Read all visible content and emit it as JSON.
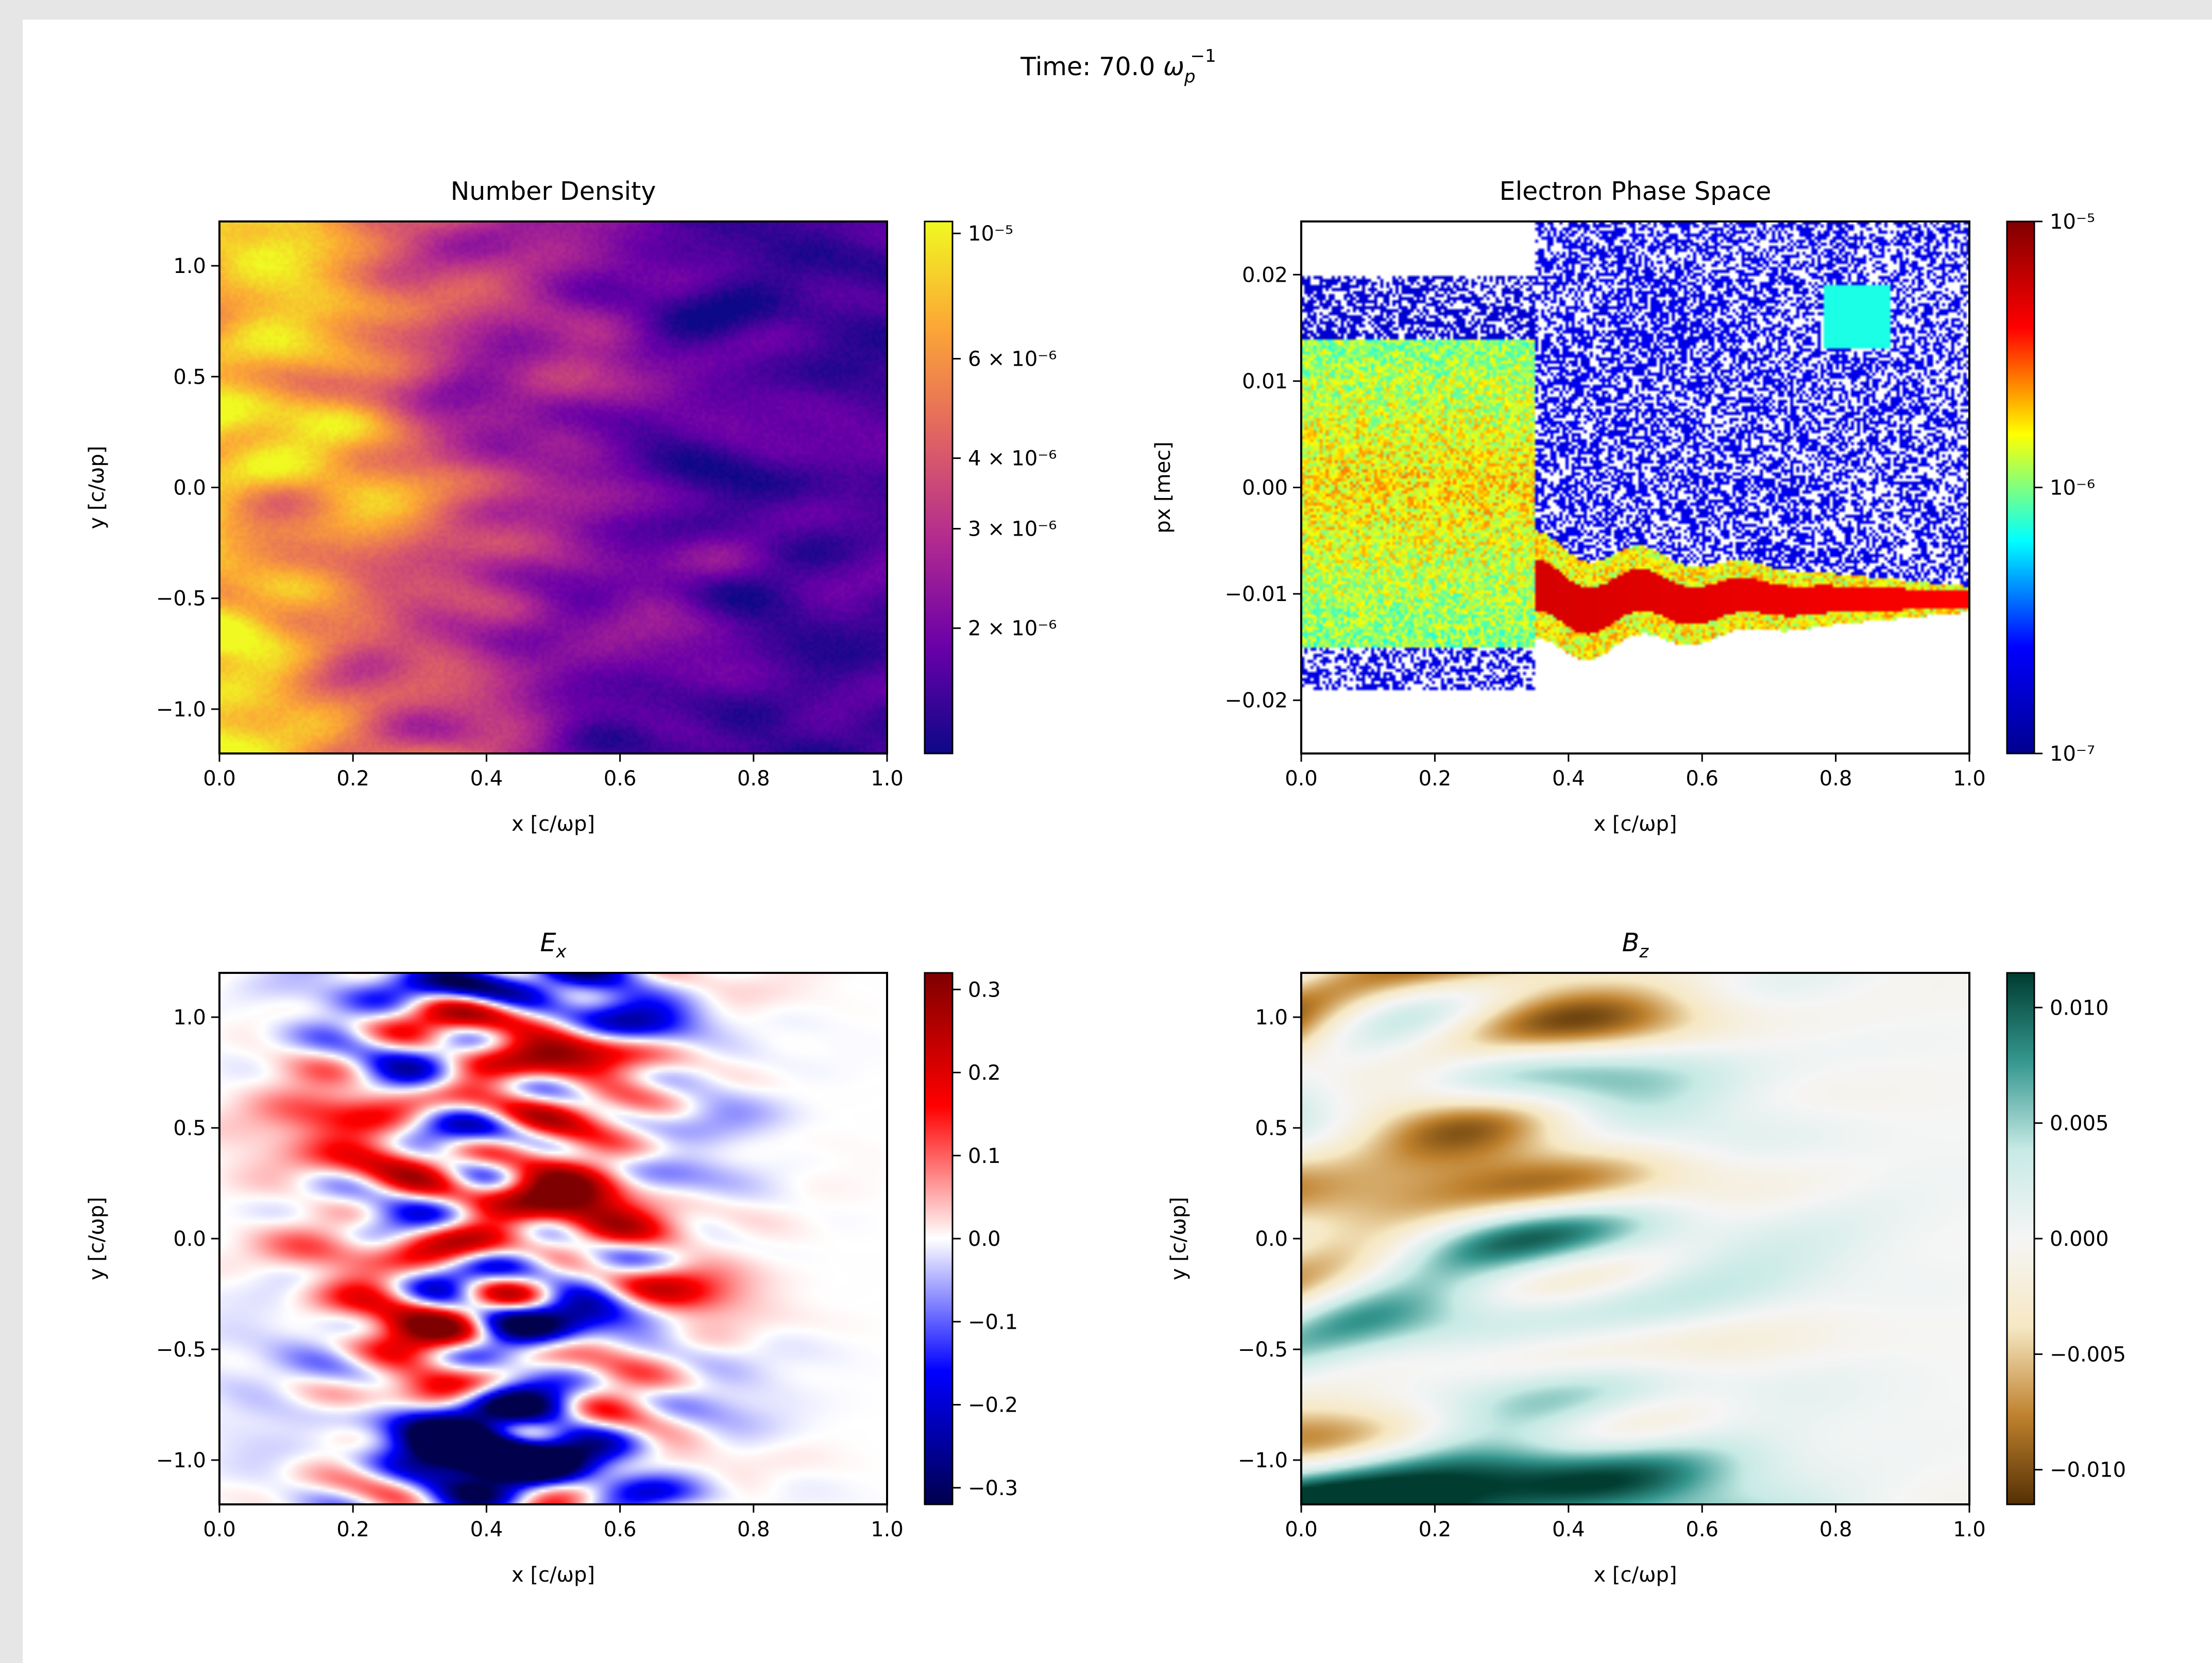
{
  "figure": {
    "suptitle_prefix": "Time: 70.0 ",
    "suptitle_symbol": "ω",
    "suptitle_sub": "p",
    "suptitle_sup": "−1"
  },
  "chart_data": [
    {
      "type": "heatmap",
      "title": "Number Density",
      "xlabel": "x [c/ωp]",
      "ylabel": "y [c/ωp]",
      "xlim": [
        0.0,
        1.0
      ],
      "ylim": [
        -1.2,
        1.2
      ],
      "xticks": [
        "0.0",
        "0.2",
        "0.4",
        "0.6",
        "0.8",
        "1.0"
      ],
      "yticks": [
        "1.0",
        "0.5",
        "0.0",
        "−0.5",
        "−1.0"
      ],
      "colormap": "plasma",
      "colorbar_scale": "log",
      "colorbar_range": [
        1.2e-06,
        1.05e-05
      ],
      "colorbar_ticks": [
        {
          "label": "10⁻⁵",
          "value": 1e-05
        },
        {
          "label": "6 × 10⁻⁶",
          "value": 6e-06
        },
        {
          "label": "4 × 10⁻⁶",
          "value": 4e-06
        },
        {
          "label": "3 × 10⁻⁶",
          "value": 3e-06
        },
        {
          "label": "2 × 10⁻⁶",
          "value": 2e-06
        }
      ],
      "colors": [
        "#0d0887",
        "#6a00a8",
        "#b12a90",
        "#e16462",
        "#fca636",
        "#f0f921"
      ]
    },
    {
      "type": "heatmap",
      "title": "Electron Phase Space",
      "xlabel": "x [c/ωp]",
      "ylabel": "px [mec]",
      "xlim": [
        0.0,
        1.0
      ],
      "ylim": [
        -0.025,
        0.025
      ],
      "xticks": [
        "0.0",
        "0.2",
        "0.4",
        "0.6",
        "0.8",
        "1.0"
      ],
      "yticks": [
        "0.02",
        "0.01",
        "0.00",
        "−0.01",
        "−0.02"
      ],
      "colormap": "jet",
      "colorbar_scale": "log",
      "colorbar_range": [
        1e-07,
        1e-05
      ],
      "colorbar_ticks": [
        {
          "label": "10⁻⁵",
          "value": 1e-05
        },
        {
          "label": "10⁻⁶",
          "value": 1e-06
        },
        {
          "label": "10⁻⁷",
          "value": 1e-07
        }
      ],
      "colors": [
        "#00008f",
        "#0000ff",
        "#00ffff",
        "#ffff00",
        "#ff0000",
        "#800000"
      ]
    },
    {
      "type": "heatmap",
      "title": "Ex",
      "xlabel": "x [c/ωp]",
      "ylabel": "y [c/ωp]",
      "xlim": [
        0.0,
        1.0
      ],
      "ylim": [
        -1.2,
        1.2
      ],
      "xticks": [
        "0.0",
        "0.2",
        "0.4",
        "0.6",
        "0.8",
        "1.0"
      ],
      "yticks": [
        "1.0",
        "0.5",
        "0.0",
        "−0.5",
        "−1.0"
      ],
      "colormap": "seismic",
      "colorbar_range": [
        -0.32,
        0.32
      ],
      "colorbar_ticks": [
        {
          "label": "0.3",
          "value": 0.3
        },
        {
          "label": "0.2",
          "value": 0.2
        },
        {
          "label": "0.1",
          "value": 0.1
        },
        {
          "label": "0.0",
          "value": 0.0
        },
        {
          "label": "−0.1",
          "value": -0.1
        },
        {
          "label": "−0.2",
          "value": -0.2
        },
        {
          "label": "−0.3",
          "value": -0.3
        }
      ],
      "colors": [
        "#00004c",
        "#0000ff",
        "#ffffff",
        "#ff0000",
        "#7f0000"
      ]
    },
    {
      "type": "heatmap",
      "title": "Bz",
      "xlabel": "x [c/ωp]",
      "ylabel": "y [c/ωp]",
      "xlim": [
        0.0,
        1.0
      ],
      "ylim": [
        -1.2,
        1.2
      ],
      "xticks": [
        "0.0",
        "0.2",
        "0.4",
        "0.6",
        "0.8",
        "1.0"
      ],
      "yticks": [
        "1.0",
        "0.5",
        "0.0",
        "−0.5",
        "−1.0"
      ],
      "colormap": "BrBG",
      "colorbar_range": [
        -0.0115,
        0.0115
      ],
      "colorbar_ticks": [
        {
          "label": "0.010",
          "value": 0.01
        },
        {
          "label": "0.005",
          "value": 0.005
        },
        {
          "label": "0.000",
          "value": 0.0
        },
        {
          "label": "−0.005",
          "value": -0.005
        },
        {
          "label": "−0.010",
          "value": -0.01
        }
      ],
      "colors": [
        "#543005",
        "#bf812d",
        "#f6e8c3",
        "#f5f5f5",
        "#c7eae5",
        "#35978f",
        "#003c30"
      ]
    }
  ]
}
